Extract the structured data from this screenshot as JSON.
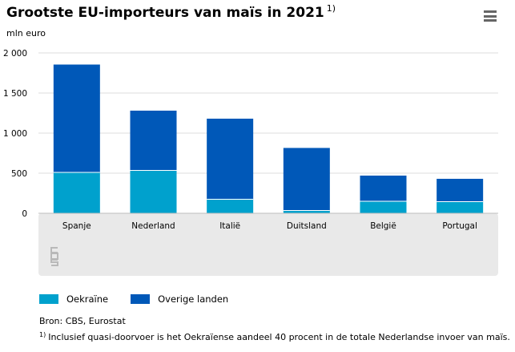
{
  "header": {
    "title": "Grootste EU-importeurs van maïs in 2021",
    "title_footnote_marker": "1)",
    "menu_icon": "hamburger-menu-icon"
  },
  "chart_data": {
    "type": "bar",
    "stacked": true,
    "unit_label": "mln euro",
    "categories": [
      "Spanje",
      "Nederland",
      "Italië",
      "Duitsland",
      "België",
      "Portugal"
    ],
    "series": [
      {
        "name": "Oekraïne",
        "color": "#00a1cd",
        "values": [
          510,
          535,
          175,
          35,
          150,
          145
        ]
      },
      {
        "name": "Overige landen",
        "color": "#0058b8",
        "values": [
          1345,
          745,
          1005,
          780,
          320,
          285
        ]
      }
    ],
    "ylim": [
      0,
      2000
    ],
    "yticks": [
      0,
      500,
      1000,
      1500,
      2000
    ],
    "ytick_labels": [
      "0",
      "500",
      "1 000",
      "1 500",
      "2 000"
    ],
    "grid": true,
    "legend_position": "bottom-left",
    "plot_background": "#e9e9e9"
  },
  "logo": {
    "name": "cbs-logo",
    "text": "cbs"
  },
  "source": "Bron: CBS, Eurostat",
  "footnote": {
    "marker": "1)",
    "text": "Inclusief quasi-doorvoer is het Oekraïense aandeel 40 procent in de totale Nederlandse invoer van maïs."
  }
}
